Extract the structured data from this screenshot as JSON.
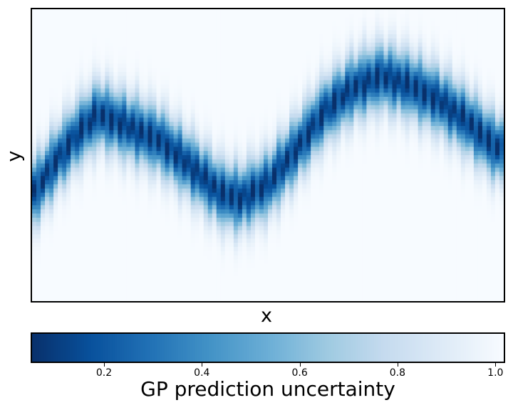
{
  "chart_data": {
    "type": "heatmap",
    "title": "",
    "xlabel": "x",
    "ylabel": "y",
    "x_ticks_shown": false,
    "y_ticks_shown": false,
    "colormap": "Blues_r",
    "colorbar": {
      "label": "GP prediction uncertainty",
      "range": [
        0.05,
        1.02
      ],
      "ticks": [
        0.2,
        0.4,
        0.6,
        0.8,
        1.0
      ],
      "tick_labels": [
        "0.2",
        "0.4",
        "0.6",
        "0.8",
        "1.0"
      ],
      "orientation": "horizontal",
      "placement": "bottom"
    },
    "description_values": {
      "min_uncertainty_ridge_center_fraction": [
        [
          0.0,
          0.36
        ],
        [
          0.05,
          0.48
        ],
        [
          0.1,
          0.58
        ],
        [
          0.14,
          0.64
        ],
        [
          0.2,
          0.6
        ],
        [
          0.27,
          0.55
        ],
        [
          0.33,
          0.47
        ],
        [
          0.4,
          0.37
        ],
        [
          0.44,
          0.35
        ],
        [
          0.5,
          0.4
        ],
        [
          0.56,
          0.52
        ],
        [
          0.62,
          0.65
        ],
        [
          0.68,
          0.73
        ],
        [
          0.74,
          0.77
        ],
        [
          0.8,
          0.74
        ],
        [
          0.86,
          0.69
        ],
        [
          0.92,
          0.62
        ],
        [
          0.98,
          0.53
        ],
        [
          1.0,
          0.52
        ]
      ]
    }
  }
}
